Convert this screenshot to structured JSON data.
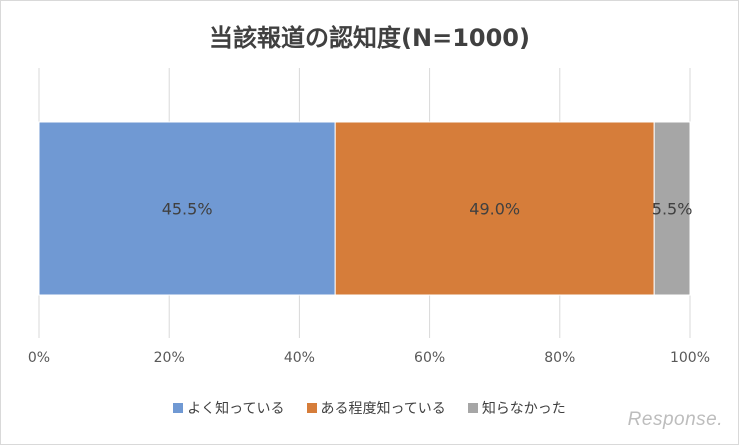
{
  "chart_data": {
    "type": "bar",
    "orientation": "horizontal-stacked",
    "title": "当該報道の認知度(N=1000)",
    "categories": [
      ""
    ],
    "series": [
      {
        "name": "よく知っている",
        "values": [
          45.5
        ],
        "label": "45.5%",
        "color": "#7099d3"
      },
      {
        "name": "ある程度知っている",
        "values": [
          49.0
        ],
        "label": "49.0%",
        "color": "#d67d3a"
      },
      {
        "name": "知らなかった",
        "values": [
          5.5
        ],
        "label": "5.5%",
        "color": "#a6a6a6"
      }
    ],
    "xlim": [
      0,
      100
    ],
    "x_ticks": [
      "0%",
      "20%",
      "40%",
      "60%",
      "80%",
      "100%"
    ],
    "grid": true,
    "legend_position": "bottom"
  },
  "watermark": "Response."
}
